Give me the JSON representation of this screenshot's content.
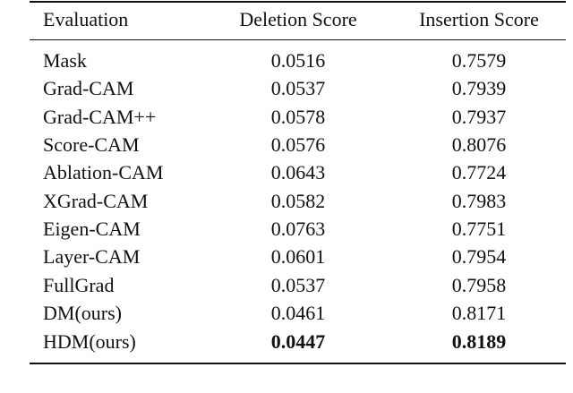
{
  "table": {
    "header": [
      "Evaluation",
      "Deletion Score",
      "Insertion Score"
    ],
    "rows": [
      [
        "Mask",
        "0.0516",
        "0.7579"
      ],
      [
        "Grad-CAM",
        "0.0537",
        "0.7939"
      ],
      [
        "Grad-CAM++",
        "0.0578",
        "0.7937"
      ],
      [
        "Score-CAM",
        "0.0576",
        "0.8076"
      ],
      [
        "Ablation-CAM",
        "0.0643",
        "0.7724"
      ],
      [
        "XGrad-CAM",
        "0.0582",
        "0.7983"
      ],
      [
        "Eigen-CAM",
        "0.0763",
        "0.7751"
      ],
      [
        "Layer-CAM",
        "0.0601",
        "0.7954"
      ],
      [
        "FullGrad",
        "0.0537",
        "0.7958"
      ],
      [
        "DM(ours)",
        "0.0461",
        "0.8171"
      ],
      [
        "HDM(ours)",
        "0.0447",
        "0.8189"
      ]
    ]
  }
}
